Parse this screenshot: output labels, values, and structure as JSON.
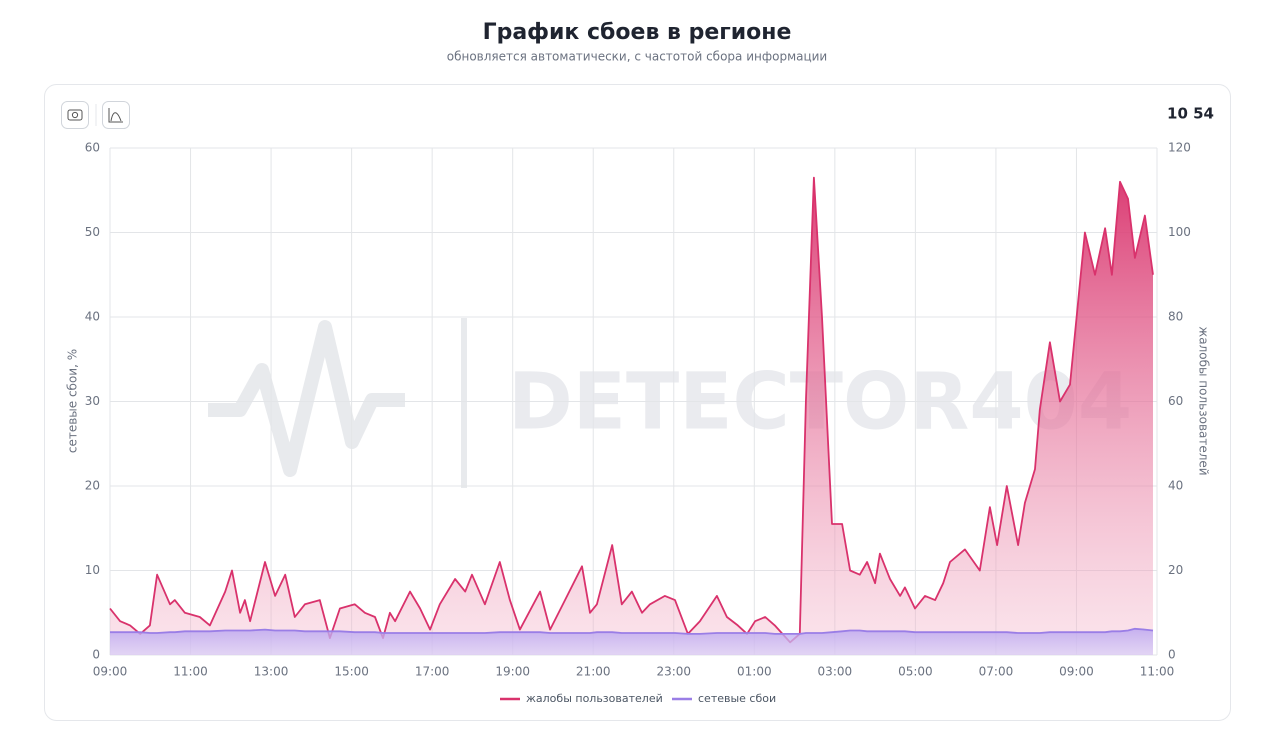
{
  "header": {
    "title": "График сбоев в регионе",
    "subtitle": "обновляется автоматически, с частотой сбора информации"
  },
  "clock": "10 54",
  "chart_data": {
    "type": "area",
    "watermark": "DETECTOR404",
    "ylabel": "сетевые сбои, %",
    "y2label": "жалобы пользователей",
    "legend": "bottom",
    "grid": true,
    "xlim": [
      0,
      26
    ],
    "xticks": [
      {
        "value": 0,
        "label": "09:00"
      },
      {
        "value": 2,
        "label": "11:00"
      },
      {
        "value": 4,
        "label": "13:00"
      },
      {
        "value": 6,
        "label": "15:00"
      },
      {
        "value": 8,
        "label": "17:00"
      },
      {
        "value": 10,
        "label": "19:00"
      },
      {
        "value": 12,
        "label": "21:00"
      },
      {
        "value": 14,
        "label": "23:00"
      },
      {
        "value": 16,
        "label": "01:00"
      },
      {
        "value": 18,
        "label": "03:00"
      },
      {
        "value": 20,
        "label": "05:00"
      },
      {
        "value": 22,
        "label": "07:00"
      },
      {
        "value": 24,
        "label": "09:00"
      },
      {
        "value": 26,
        "label": "11:00"
      }
    ],
    "ylim": [
      0,
      60
    ],
    "yticks": [
      0,
      10,
      20,
      30,
      40,
      50,
      60
    ],
    "y2lim": [
      0,
      120
    ],
    "y2ticks": [
      0,
      20,
      40,
      60,
      80,
      100,
      120
    ],
    "x": [
      0,
      0.25,
      0.5,
      0.75,
      0.99,
      1.17,
      1.49,
      1.61,
      1.86,
      2.23,
      2.48,
      2.86,
      3.03,
      3.23,
      3.35,
      3.48,
      3.85,
      4.1,
      4.35,
      4.59,
      4.84,
      5.21,
      5.46,
      5.71,
      6.08,
      6.33,
      6.58,
      6.78,
      6.95,
      7.08,
      7.45,
      7.7,
      7.95,
      8.19,
      8.57,
      8.82,
      8.99,
      9.31,
      9.68,
      9.93,
      10.18,
      10.68,
      10.93,
      11.3,
      11.72,
      11.92,
      12.09,
      12.47,
      12.71,
      12.96,
      13.21,
      13.41,
      13.78,
      14.03,
      14.35,
      14.65,
      15.07,
      15.32,
      15.59,
      15.82,
      16.02,
      16.27,
      16.51,
      16.89,
      17.13,
      17.28,
      17.48,
      17.68,
      17.93,
      18.18,
      18.38,
      18.62,
      18.8,
      19.0,
      19.12,
      19.37,
      19.62,
      19.74,
      19.99,
      20.24,
      20.49,
      20.69,
      20.86,
      21.23,
      21.6,
      21.85,
      22.03,
      22.27,
      22.55,
      22.72,
      22.97,
      23.09,
      23.34,
      23.59,
      23.84,
      24.21,
      24.46,
      24.71,
      24.88,
      25.08,
      25.28,
      25.45,
      25.7,
      25.9
    ],
    "series": [
      {
        "name": "жалобы пользователей",
        "color": "#d9326c",
        "axis": "y2",
        "values": [
          11,
          8,
          7,
          5,
          7,
          19,
          12,
          13,
          10,
          9,
          7,
          15,
          20,
          10,
          13,
          8,
          22,
          14,
          19,
          9,
          12,
          13,
          4,
          11,
          12,
          10,
          9,
          4,
          10,
          8,
          15,
          11,
          6,
          12,
          18,
          15,
          19,
          12,
          22,
          13,
          6,
          15,
          6,
          13,
          21,
          10,
          12,
          26,
          12,
          15,
          10,
          12,
          14,
          13,
          5,
          8,
          14,
          9,
          7,
          5,
          8,
          9,
          7,
          3,
          5,
          60,
          113,
          80,
          31,
          31,
          20,
          19,
          22,
          17,
          24,
          18,
          14,
          16,
          11,
          14,
          13,
          17,
          22,
          25,
          20,
          35,
          26,
          40,
          26,
          36,
          44,
          58,
          74,
          60,
          64,
          100,
          90,
          101,
          90,
          112,
          108,
          94,
          104,
          90
        ]
      },
      {
        "name": "сетевые сбои",
        "color": "#9a7ee6",
        "values": [
          2.7,
          2.7,
          2.7,
          2.7,
          2.6,
          2.6,
          2.7,
          2.7,
          2.8,
          2.8,
          2.8,
          2.9,
          2.9,
          2.9,
          2.9,
          2.9,
          3.0,
          2.9,
          2.9,
          2.9,
          2.8,
          2.8,
          2.8,
          2.8,
          2.7,
          2.7,
          2.7,
          2.6,
          2.6,
          2.6,
          2.6,
          2.6,
          2.6,
          2.6,
          2.6,
          2.6,
          2.6,
          2.6,
          2.7,
          2.7,
          2.7,
          2.7,
          2.6,
          2.6,
          2.6,
          2.6,
          2.7,
          2.7,
          2.6,
          2.6,
          2.6,
          2.6,
          2.6,
          2.6,
          2.5,
          2.5,
          2.6,
          2.6,
          2.6,
          2.6,
          2.6,
          2.6,
          2.5,
          2.5,
          2.5,
          2.6,
          2.6,
          2.6,
          2.7,
          2.8,
          2.9,
          2.9,
          2.8,
          2.8,
          2.8,
          2.8,
          2.8,
          2.8,
          2.7,
          2.7,
          2.7,
          2.7,
          2.7,
          2.7,
          2.7,
          2.7,
          2.7,
          2.7,
          2.6,
          2.6,
          2.6,
          2.6,
          2.7,
          2.7,
          2.7,
          2.7,
          2.7,
          2.7,
          2.8,
          2.8,
          2.9,
          3.1,
          3.0,
          2.9
        ]
      }
    ]
  }
}
